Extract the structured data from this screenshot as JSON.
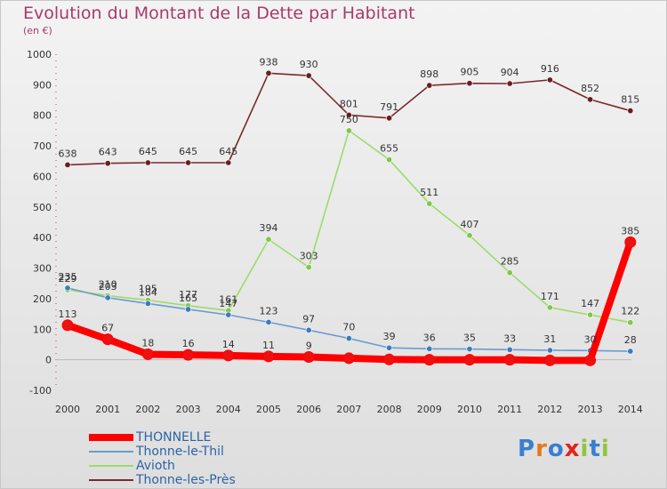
{
  "chart_data": {
    "type": "line",
    "title": "Evolution du Montant de la Dette par Habitant",
    "subtitle": "(en €)",
    "xlabel": "",
    "ylabel": "",
    "ylim": [
      -100,
      1000
    ],
    "yticks": [
      -100,
      0,
      100,
      200,
      300,
      400,
      500,
      600,
      700,
      800,
      900,
      1000
    ],
    "categories": [
      "2000",
      "2001",
      "2002",
      "2003",
      "2004",
      "2005",
      "2006",
      "2007",
      "2008",
      "2009",
      "2010",
      "2011",
      "2012",
      "2013",
      "2014"
    ],
    "series": [
      {
        "name": "THONNELLE",
        "color": "#ff0000",
        "marker": "#ee1111",
        "thick": true,
        "values": [
          113,
          67,
          18,
          16,
          14,
          11,
          9,
          5,
          1,
          0,
          0,
          0,
          -2,
          -2,
          385
        ],
        "labels": [
          "113",
          "67",
          "18",
          "16",
          "14",
          "11",
          "9",
          "",
          "",
          "",
          "",
          "",
          "",
          "",
          "385"
        ]
      },
      {
        "name": "Thonne-le-Thil",
        "color": "#6a9ccc",
        "marker": "#3c7cbe",
        "thick": false,
        "values": [
          235,
          203,
          184,
          165,
          147,
          123,
          97,
          70,
          39,
          36,
          35,
          33,
          31,
          30,
          28
        ],
        "labels": [
          "235",
          "203",
          "184",
          "165",
          "147",
          "123",
          "97",
          "70",
          "39",
          "36",
          "35",
          "33",
          "31",
          "30",
          "28"
        ]
      },
      {
        "name": "Avioth",
        "color": "#9ddb6a",
        "marker": "#7ec84a",
        "thick": false,
        "values": [
          229,
          210,
          195,
          177,
          161,
          394,
          303,
          750,
          655,
          511,
          407,
          285,
          171,
          147,
          122
        ],
        "labels": [
          "229",
          "210",
          "195",
          "177",
          "161",
          "394",
          "303",
          "750",
          "655",
          "511",
          "407",
          "285",
          "171",
          "147",
          "122"
        ]
      },
      {
        "name": "Thonne-les-Près",
        "color": "#7a2a2e",
        "marker": "#6a1e22",
        "thick": false,
        "values": [
          638,
          643,
          645,
          645,
          645,
          938,
          930,
          801,
          791,
          898,
          905,
          904,
          916,
          852,
          815
        ],
        "labels": [
          "638",
          "643",
          "645",
          "645",
          "645",
          "938",
          "930",
          "801",
          "791",
          "898",
          "905",
          "904",
          "916",
          "852",
          "815"
        ]
      }
    ],
    "legend_position": "bottom-left"
  },
  "branding": {
    "logo_letters": [
      "P",
      "r",
      "o",
      "x",
      "i",
      "t",
      "i"
    ],
    "logo_colors": [
      "#3a7fcf",
      "#e27a1b",
      "#3a7fcf",
      "#e2231a",
      "#8fc63f",
      "#3a7fcf",
      "#8fc63f"
    ]
  }
}
